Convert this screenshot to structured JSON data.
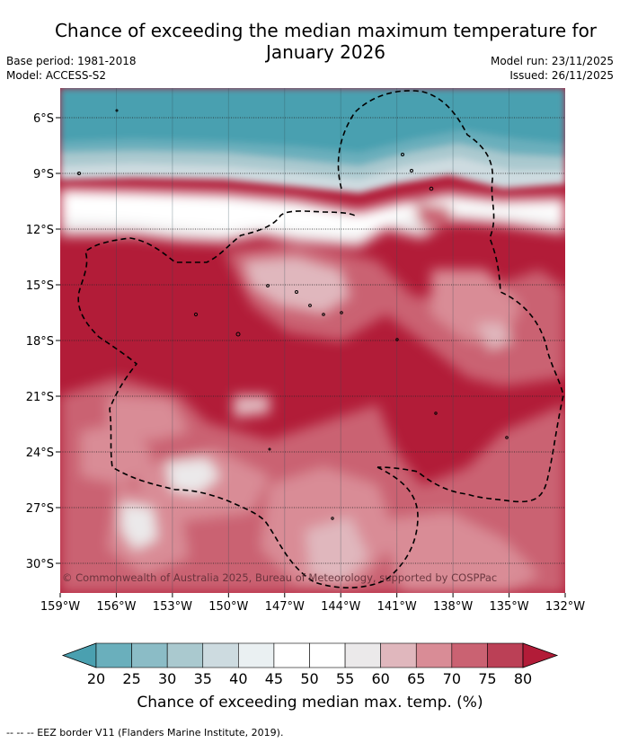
{
  "title_line1": "Chance of exceeding the median maximum temperature for",
  "title_line2": "January 2026",
  "base_period": "Base period: 1981-2018",
  "model": "Model: ACCESS-S2",
  "model_run": "Model run: 23/11/2025",
  "issued": "Issued: 26/11/2025",
  "copyright": "© Commonwealth of Australia 2025, Bureau of Meteorology, supported by COSPPac",
  "lat_ticks": [
    "6°S",
    "9°S",
    "12°S",
    "15°S",
    "18°S",
    "21°S",
    "24°S",
    "27°S",
    "30°S"
  ],
  "lon_ticks": [
    "159°W",
    "156°W",
    "153°W",
    "150°W",
    "147°W",
    "144°W",
    "141°W",
    "138°W",
    "135°W",
    "132°W"
  ],
  "colorbar": {
    "ticks": [
      "20",
      "25",
      "30",
      "35",
      "40",
      "45",
      "50",
      "55",
      "60",
      "65",
      "70",
      "75",
      "80"
    ],
    "colors": [
      "#4aa0b0",
      "#6aafbc",
      "#8bbcc6",
      "#aac9cf",
      "#cddbe0",
      "#eaf0f2",
      "#ffffff",
      "#ffffff",
      "#ebe9ea",
      "#e0b7bd",
      "#d98c96",
      "#ca6272",
      "#bb4056",
      "#b21c38"
    ],
    "label": "Chance of exceeding median max. temp. (%)"
  },
  "footnote": "--  --  -- EEZ border V11 (Flanders Marine Institute, 2019)."
}
